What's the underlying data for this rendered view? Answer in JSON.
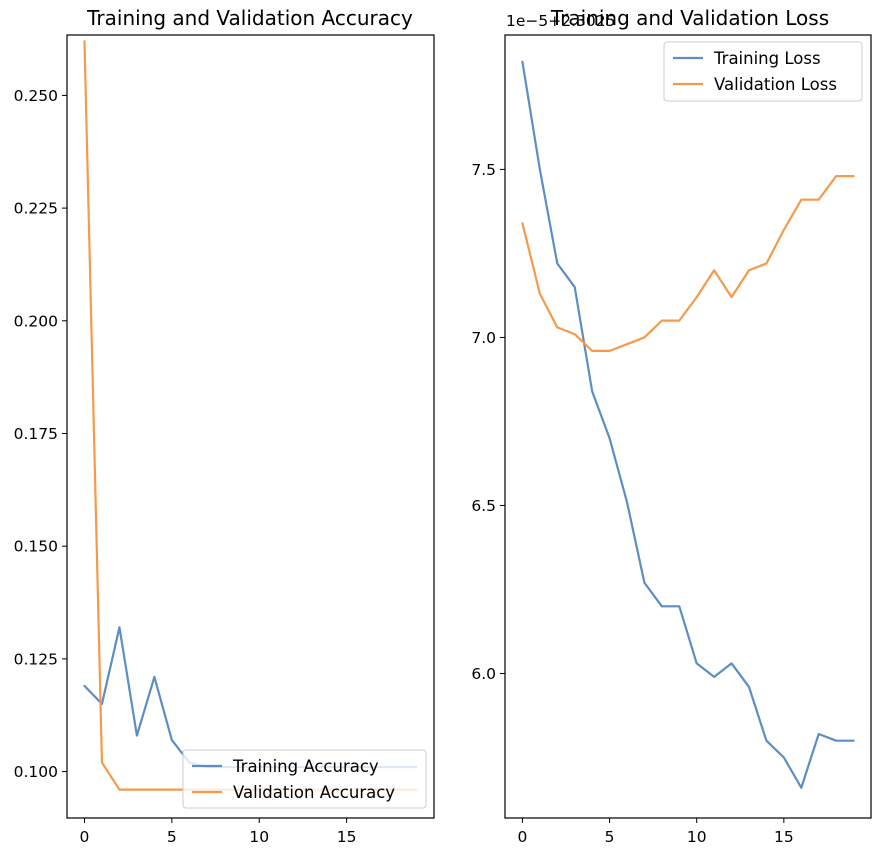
{
  "chart_data": [
    {
      "type": "line",
      "title": "Training and Validation Accuracy",
      "xlabel": "",
      "ylabel": "",
      "xlim": [
        -1,
        20
      ],
      "ylim": [
        0.0897,
        0.2634
      ],
      "xticks": [
        0,
        5,
        10,
        15
      ],
      "yticks": [
        0.1,
        0.125,
        0.15,
        0.175,
        0.2,
        0.225,
        0.25
      ],
      "ytick_labels": [
        "0.100",
        "0.125",
        "0.150",
        "0.175",
        "0.200",
        "0.225",
        "0.250"
      ],
      "grid": false,
      "legend_position": "lower-right",
      "series": [
        {
          "name": "Training Accuracy",
          "color": "#5b8ec4",
          "x": [
            0,
            1,
            2,
            3,
            4,
            5,
            6,
            7,
            8,
            9,
            10,
            11,
            12,
            13,
            14,
            15,
            16,
            17,
            18,
            19
          ],
          "values": [
            0.119,
            0.115,
            0.132,
            0.108,
            0.121,
            0.107,
            0.102,
            0.101,
            0.101,
            0.101,
            0.101,
            0.101,
            0.101,
            0.101,
            0.101,
            0.101,
            0.101,
            0.101,
            0.101,
            0.101
          ]
        },
        {
          "name": "Validation Accuracy",
          "color": "#f59a4b",
          "x": [
            0,
            1,
            2,
            3,
            4,
            5,
            6,
            7,
            8,
            9,
            10,
            11,
            12,
            13,
            14,
            15,
            16,
            17,
            18,
            19
          ],
          "values": [
            0.262,
            0.102,
            0.096,
            0.096,
            0.096,
            0.096,
            0.096,
            0.096,
            0.096,
            0.096,
            0.096,
            0.096,
            0.096,
            0.096,
            0.096,
            0.096,
            0.096,
            0.096,
            0.096,
            0.096
          ]
        }
      ]
    },
    {
      "type": "line",
      "title": "Training and Validation Loss",
      "offset_text": "1e−5+2.3025",
      "xlabel": "",
      "ylabel": "",
      "xlim": [
        -1,
        20
      ],
      "ylim": [
        5.57,
        7.9
      ],
      "xticks": [
        0,
        5,
        10,
        15
      ],
      "yticks": [
        6.0,
        6.5,
        7.0,
        7.5
      ],
      "ytick_labels": [
        "6.0",
        "6.5",
        "7.0",
        "7.5"
      ],
      "grid": false,
      "legend_position": "upper-right",
      "series": [
        {
          "name": "Training Loss",
          "color": "#5b8ec4",
          "x": [
            0,
            1,
            2,
            3,
            4,
            5,
            6,
            7,
            8,
            9,
            10,
            11,
            12,
            13,
            14,
            15,
            16,
            17,
            18,
            19
          ],
          "values": [
            7.82,
            7.5,
            7.22,
            7.15,
            6.84,
            6.7,
            6.51,
            6.27,
            6.2,
            6.2,
            6.03,
            5.99,
            6.03,
            5.96,
            5.8,
            5.75,
            5.66,
            5.82,
            5.8,
            5.8
          ]
        },
        {
          "name": "Validation Loss",
          "color": "#f59a4b",
          "x": [
            0,
            1,
            2,
            3,
            4,
            5,
            6,
            7,
            8,
            9,
            10,
            11,
            12,
            13,
            14,
            15,
            16,
            17,
            18,
            19
          ],
          "values": [
            7.34,
            7.13,
            7.03,
            7.01,
            6.96,
            6.96,
            6.98,
            7.0,
            7.05,
            7.05,
            7.12,
            7.2,
            7.12,
            7.2,
            7.22,
            7.32,
            7.41,
            7.41,
            7.48,
            7.48
          ]
        }
      ]
    }
  ]
}
